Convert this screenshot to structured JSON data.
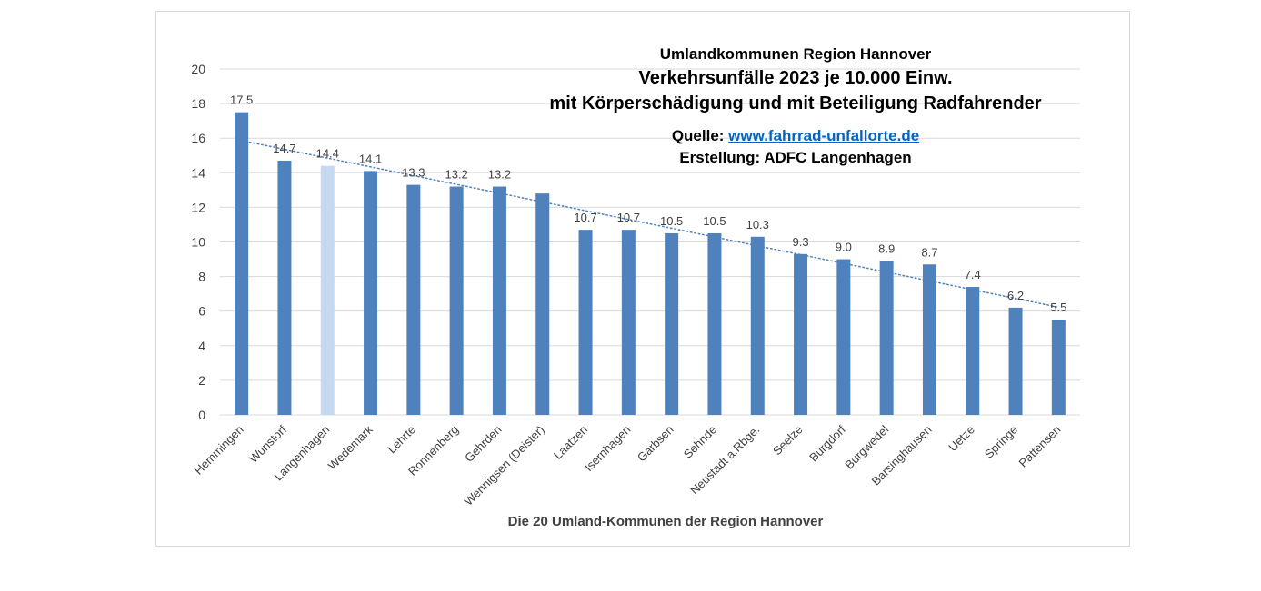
{
  "chart_data": {
    "type": "bar",
    "title_lines": [
      "Umlandkommunen Region Hannover",
      "Verkehrsunfälle 2023 je 10.000 Einw.",
      "mit Körperschädigung und mit Beteiligung Radfahrender"
    ],
    "source_label": "Quelle: ",
    "source_link": "www.fahrrad-unfallorte.de",
    "author": "Erstellung: ADFC Langenhagen",
    "xlabel": "Die 20 Umland-Kommunen der Region Hannover",
    "ylabel": "",
    "ylim": [
      0,
      20
    ],
    "yticks": [
      "0",
      "2",
      "4",
      "6",
      "8",
      "10",
      "12",
      "14",
      "16",
      "18",
      "20"
    ],
    "categories": [
      "Hemmingen",
      "Wunstorf",
      "Langenhagen",
      "Wedemark",
      "Lehrte",
      "Ronnenberg",
      "Gehrden",
      "Wennigsen (Deister)",
      "Laatzen",
      "Isernhagen",
      "Garbsen",
      "Sehnde",
      "Neustadt a.Rbge.",
      "Seelze",
      "Burgdorf",
      "Burgwedel",
      "Barsinghausen",
      "Uetze",
      "Springe",
      "Pattensen"
    ],
    "values": [
      17.5,
      14.7,
      14.4,
      14.1,
      13.3,
      13.2,
      13.2,
      12.8,
      10.7,
      10.7,
      10.5,
      10.5,
      10.3,
      9.3,
      9.0,
      8.9,
      8.7,
      7.4,
      6.2,
      5.5
    ],
    "data_labels": [
      "17.5",
      "14.7",
      "14.4",
      "14.1",
      "13.3",
      "13.2",
      "13.2",
      "",
      "10.7",
      "10.7",
      "10.5",
      "10.5",
      "10.3",
      "9.3",
      "9.0",
      "8.9",
      "8.7",
      "7.4",
      "6.2",
      "5.5"
    ],
    "highlight_category": "Langenhagen",
    "trendline": {
      "type": "linear",
      "style": "dotted"
    },
    "grid": true,
    "legend": "none",
    "colors": {
      "bar": "#4f81bd",
      "highlight": "#c5d9f1",
      "trend": "#4f81bd",
      "grid": "#d9d9d9",
      "text": "#404040"
    }
  }
}
